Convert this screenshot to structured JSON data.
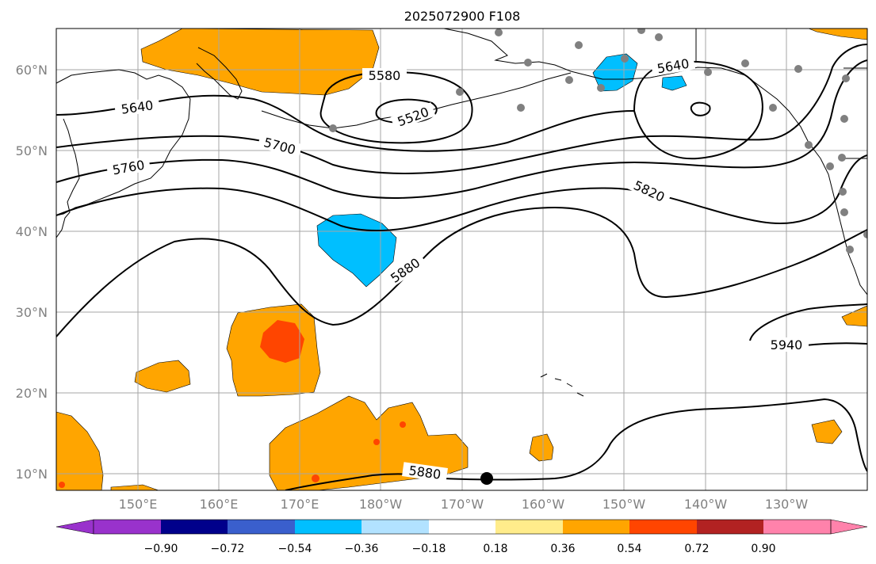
{
  "title": "2025072900 F108",
  "map": {
    "lat_labels": [
      "60°N",
      "50°N",
      "40°N",
      "30°N",
      "20°N",
      "10°N"
    ],
    "lon_labels": [
      "150°E",
      "160°E",
      "170°E",
      "180°W",
      "170°W",
      "160°W",
      "150°W",
      "140°W",
      "130°W"
    ],
    "contour_labels": [
      "5580",
      "5520",
      "5640",
      "5640",
      "5700",
      "5760",
      "5820",
      "5880",
      "5880",
      "5940"
    ],
    "colors": {
      "land_coast": "#000000",
      "contour": "#000000",
      "grid": "#a6a6a6",
      "station": "#808080"
    }
  },
  "colorbar": {
    "colors": [
      "#9932cc",
      "#00008b",
      "#3a5fcd",
      "#00bfff",
      "#b2e2ff",
      "#ffffff",
      "#ffec8b",
      "#ffa500",
      "#ff4500",
      "#b22222",
      "#ff82ab"
    ],
    "tick_labels": [
      "−0.90",
      "−0.72",
      "−0.54",
      "−0.36",
      "−0.18",
      "0.18",
      "0.36",
      "0.54",
      "0.72",
      "0.90"
    ]
  }
}
